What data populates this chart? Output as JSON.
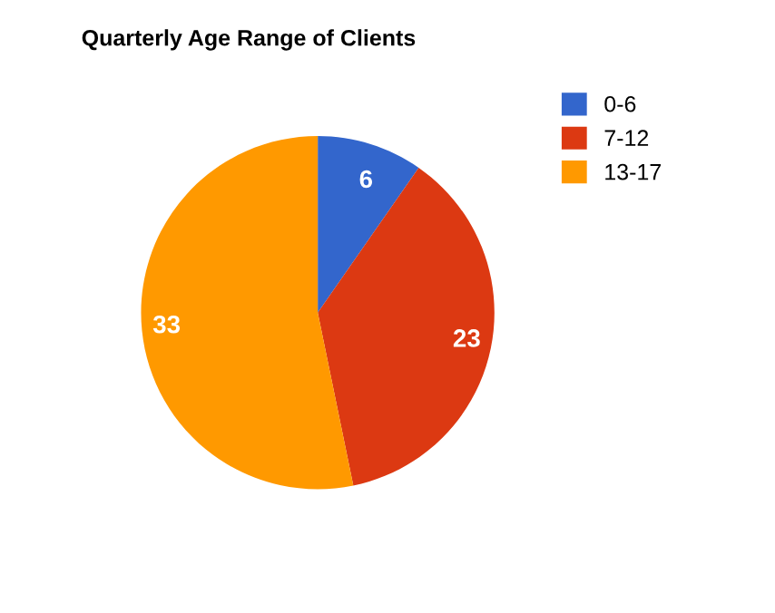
{
  "chart_data": {
    "type": "pie",
    "title": "Quarterly Age Range of Clients",
    "categories": [
      "0-6",
      "7-12",
      "13-17"
    ],
    "values": [
      6,
      23,
      33
    ],
    "colors": [
      "#3366cc",
      "#dc3912",
      "#ff9900"
    ],
    "data_labels": true,
    "legend": "top right"
  }
}
